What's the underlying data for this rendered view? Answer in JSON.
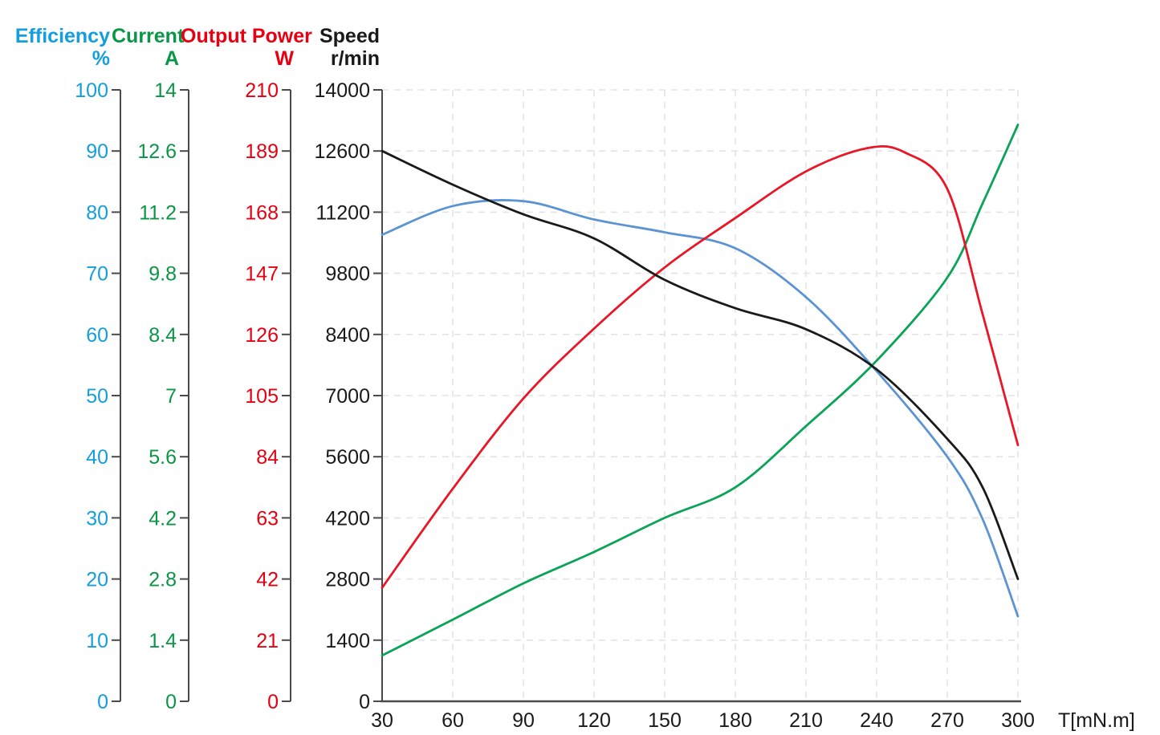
{
  "chart_data": {
    "type": "line",
    "title": "",
    "grid": true,
    "legend_position": "none",
    "x_axis": {
      "label": "T[mN.m]",
      "min": 30,
      "max": 300,
      "ticks": [
        30,
        60,
        90,
        120,
        150,
        180,
        210,
        240,
        270,
        300
      ]
    },
    "y_axes": [
      {
        "id": "efficiency",
        "name": "Efficiency",
        "unit": "%",
        "color": "#149edb",
        "max": 100,
        "ticks": [
          0,
          10,
          20,
          30,
          40,
          50,
          60,
          70,
          80,
          90,
          100
        ]
      },
      {
        "id": "current",
        "name": "Current",
        "unit": "A",
        "color": "#0a9646",
        "max": 14,
        "ticks": [
          0,
          1.4,
          2.8,
          4.2,
          5.6,
          7,
          8.4,
          9.8,
          11.2,
          12.6,
          14
        ]
      },
      {
        "id": "output_power",
        "name": "Output Power",
        "unit": "W",
        "color": "#e60012",
        "max": 210,
        "ticks": [
          0,
          21,
          42,
          63,
          84,
          105,
          126,
          147,
          168,
          189,
          210
        ]
      },
      {
        "id": "speed",
        "name": "Speed",
        "unit": "r/min",
        "color": "#1a1a1a",
        "max": 14000,
        "ticks": [
          0,
          1400,
          2800,
          4200,
          5600,
          7000,
          8400,
          9800,
          11200,
          12600,
          14000
        ]
      }
    ],
    "series": [
      {
        "id": "efficiency",
        "name": "Efficiency",
        "axis": "efficiency",
        "color": "#5b93d3",
        "points": [
          [
            30,
            76.3
          ],
          [
            60,
            81.0
          ],
          [
            90,
            81.8
          ],
          [
            120,
            78.8
          ],
          [
            150,
            76.7
          ],
          [
            180,
            74.1
          ],
          [
            210,
            66.1
          ],
          [
            240,
            54.0
          ],
          [
            270,
            40.0
          ],
          [
            285,
            29.8
          ],
          [
            300,
            13.9
          ]
        ]
      },
      {
        "id": "current",
        "name": "Current",
        "axis": "current",
        "color": "#0aa357",
        "points": [
          [
            30,
            1.05
          ],
          [
            60,
            1.87
          ],
          [
            90,
            2.7
          ],
          [
            120,
            3.42
          ],
          [
            150,
            4.2
          ],
          [
            180,
            4.9
          ],
          [
            210,
            6.3
          ],
          [
            240,
            7.8
          ],
          [
            270,
            9.7
          ],
          [
            285,
            11.4
          ],
          [
            300,
            13.2
          ]
        ]
      },
      {
        "id": "output_power",
        "name": "Output Power",
        "axis": "output_power",
        "color": "#e81626",
        "points": [
          [
            30,
            39
          ],
          [
            60,
            73
          ],
          [
            90,
            104
          ],
          [
            120,
            128
          ],
          [
            150,
            149
          ],
          [
            180,
            166
          ],
          [
            210,
            182
          ],
          [
            236,
            190
          ],
          [
            252,
            188.5
          ],
          [
            270,
            176
          ],
          [
            285,
            133
          ],
          [
            300,
            88
          ]
        ]
      },
      {
        "id": "speed",
        "name": "Speed",
        "axis": "speed",
        "color": "#1a1a1a",
        "points": [
          [
            30,
            12600
          ],
          [
            60,
            11830
          ],
          [
            90,
            11150
          ],
          [
            120,
            10600
          ],
          [
            150,
            9650
          ],
          [
            180,
            9000
          ],
          [
            210,
            8520
          ],
          [
            240,
            7600
          ],
          [
            270,
            6010
          ],
          [
            285,
            4900
          ],
          [
            300,
            2800
          ]
        ]
      }
    ]
  }
}
